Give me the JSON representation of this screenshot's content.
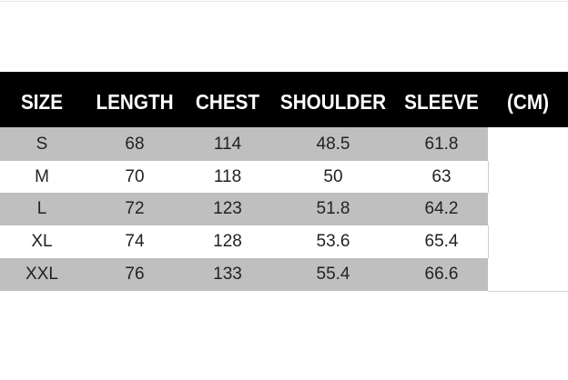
{
  "table": {
    "headers": [
      "SIZE",
      "LENGTH",
      "CHEST",
      "SHOULDER",
      "SLEEVE",
      "(CM)"
    ],
    "rows": [
      [
        "S",
        "68",
        "114",
        "48.5",
        "61.8"
      ],
      [
        "M",
        "70",
        "118",
        "50",
        "63"
      ],
      [
        "L",
        "72",
        "123",
        "51.8",
        "64.2"
      ],
      [
        "XL",
        "74",
        "128",
        "53.6",
        "65.4"
      ],
      [
        "XXL",
        "76",
        "133",
        "55.4",
        "66.6"
      ]
    ]
  },
  "colors": {
    "header_bg": "#000000",
    "header_text": "#ffffff",
    "stripe": "#bfbfbf"
  }
}
